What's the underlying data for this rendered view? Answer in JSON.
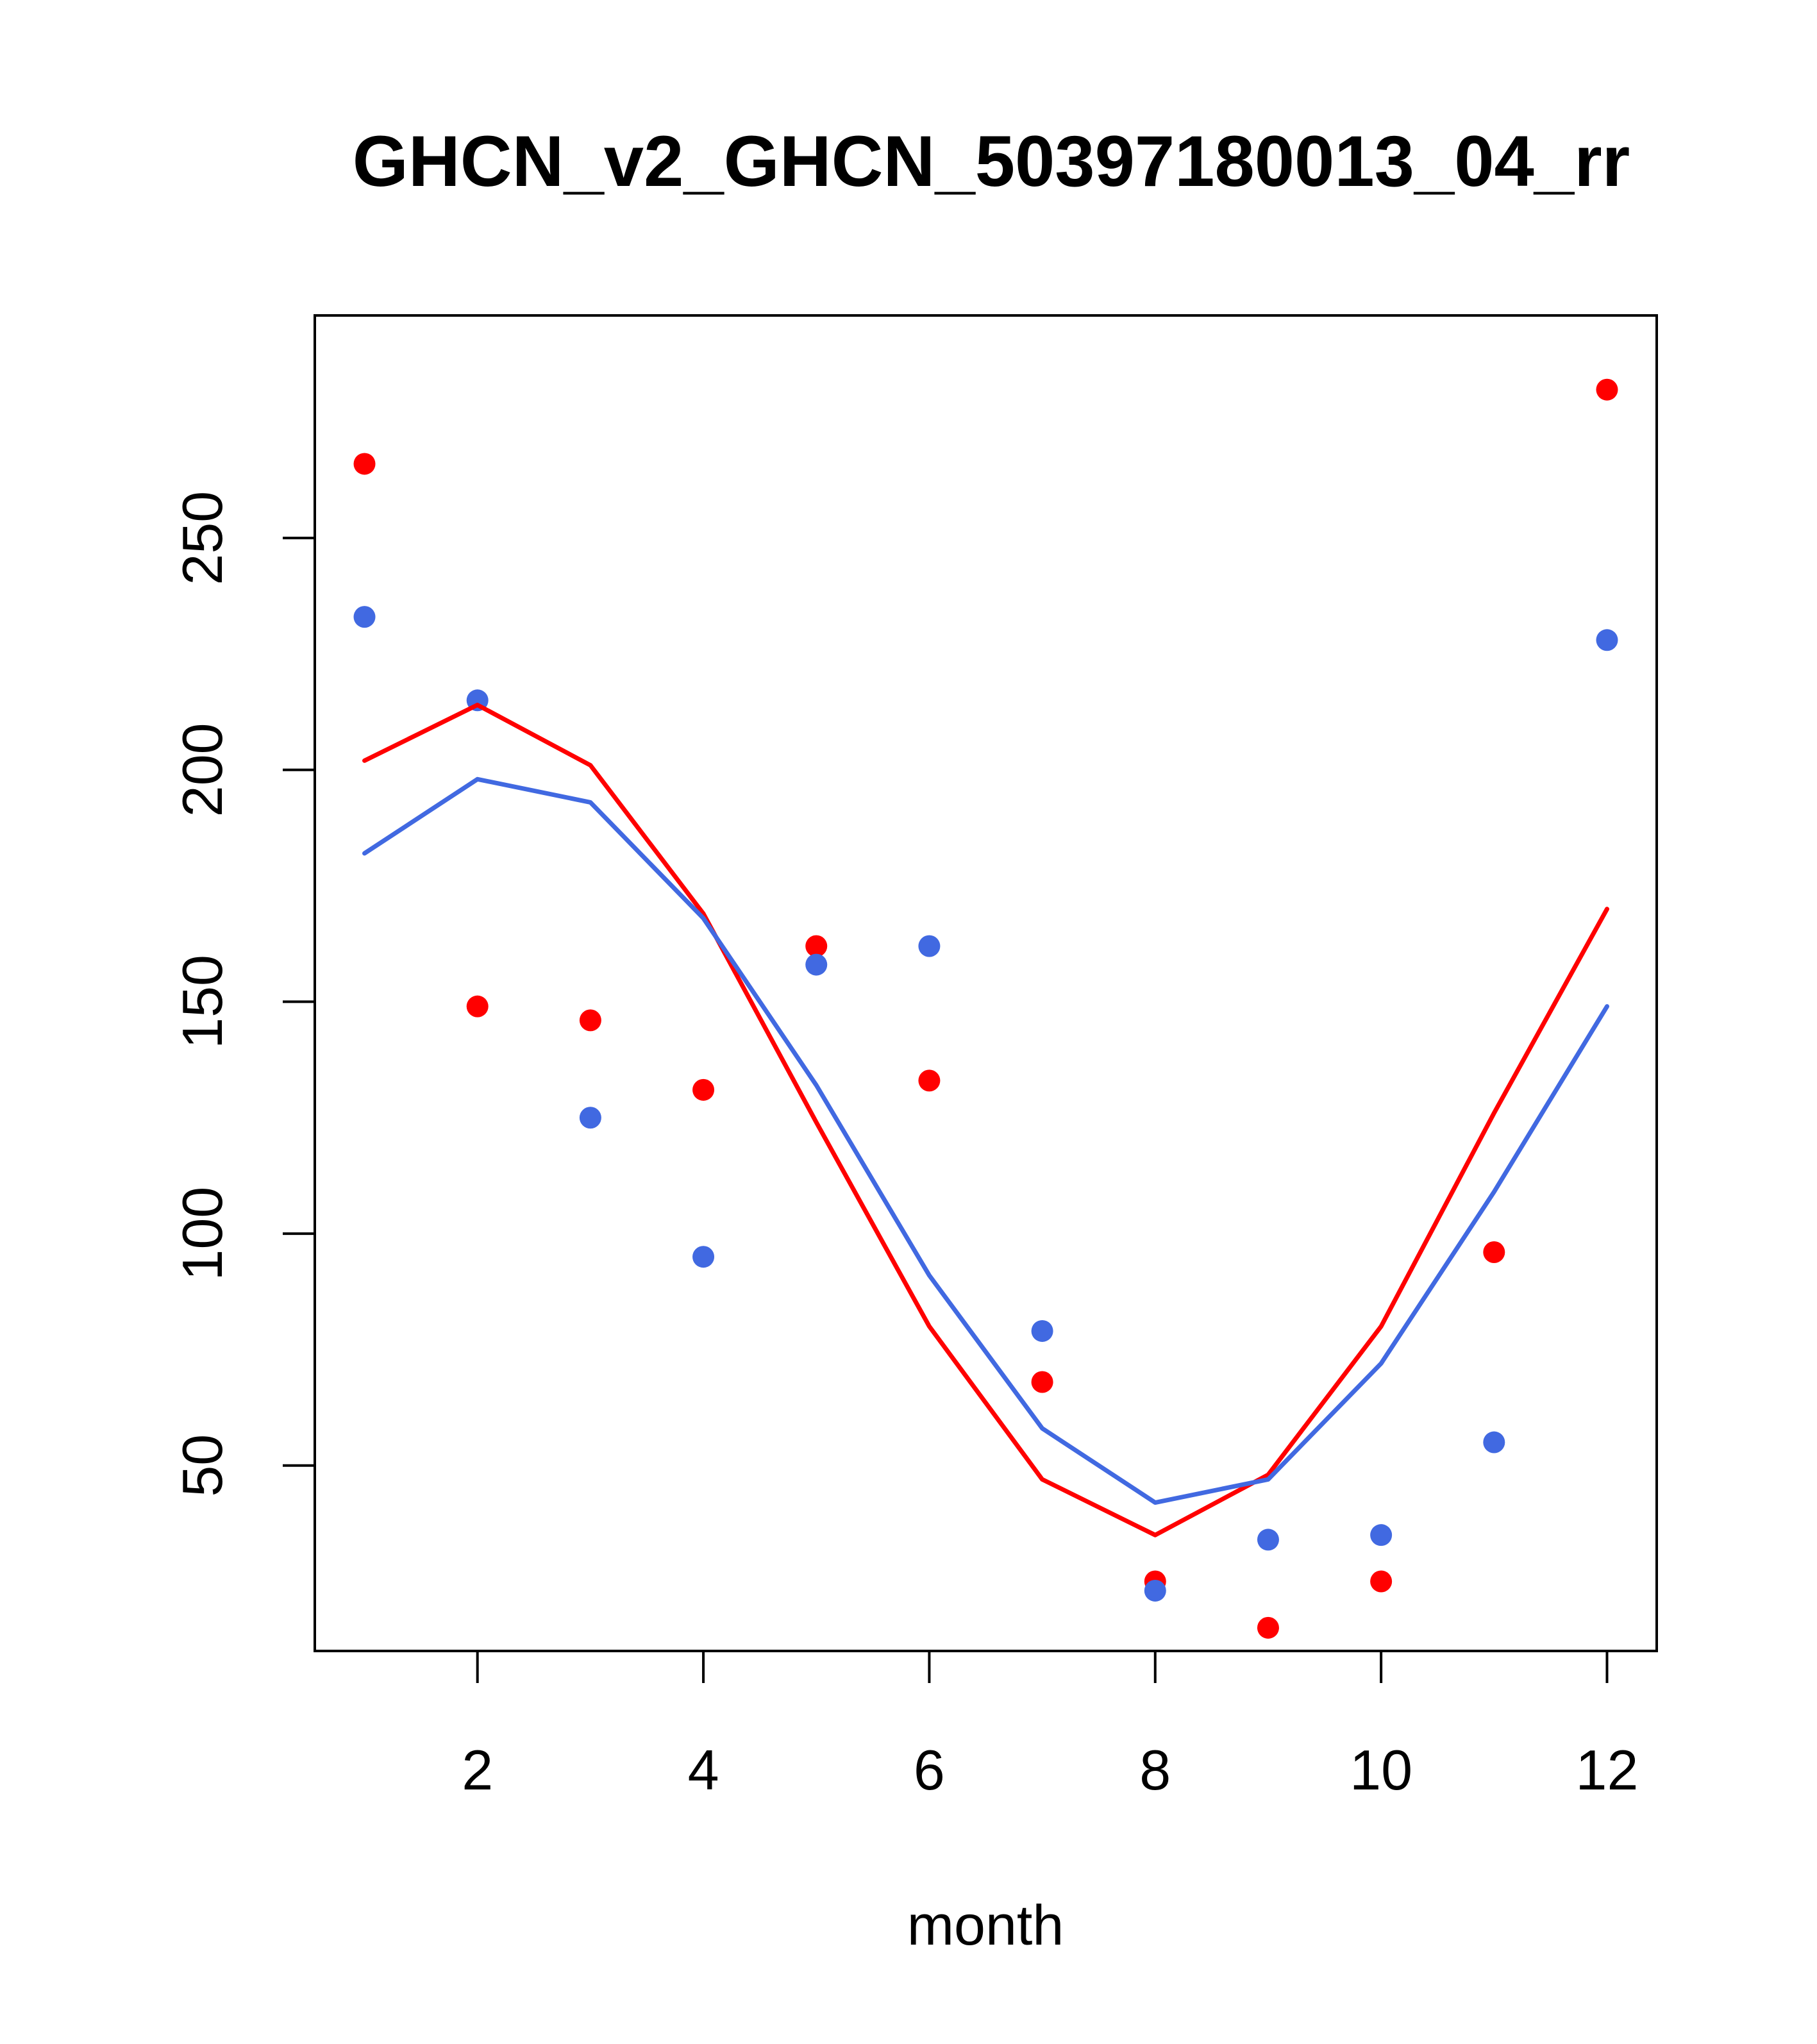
{
  "chart_data": {
    "type": "line",
    "title": "GHCN_v2_GHCN_50397180013_04_rr",
    "xlabel": "month",
    "ylabel": "",
    "xlim": [
      0.56,
      12.44
    ],
    "ylim": [
      10,
      298
    ],
    "x_ticks": [
      2,
      4,
      6,
      8,
      10,
      12
    ],
    "y_ticks": [
      50,
      100,
      150,
      200,
      250
    ],
    "x_tick_labels": [
      "2",
      "4",
      "6",
      "8",
      "10",
      "12"
    ],
    "y_tick_labels": [
      "50",
      "100",
      "150",
      "200",
      "250"
    ],
    "grid": false,
    "x": [
      1,
      2,
      3,
      4,
      5,
      6,
      7,
      8,
      9,
      10,
      11,
      12
    ],
    "series": [
      {
        "kind": "points",
        "color": "#ff0000",
        "values": [
          266,
          149,
          146,
          131,
          162,
          133,
          68,
          25,
          15,
          25,
          96,
          282
        ]
      },
      {
        "kind": "points",
        "color": "#4169e1",
        "values": [
          233,
          215,
          125,
          95,
          158,
          162,
          79,
          23,
          34,
          35,
          55,
          228
        ]
      },
      {
        "kind": "line",
        "color": "#ff0000",
        "values": [
          202,
          214,
          201,
          169,
          124,
          80,
          47,
          35,
          48,
          80,
          126,
          170
        ]
      },
      {
        "kind": "line",
        "color": "#4169e1",
        "values": [
          182,
          198,
          193,
          168,
          132,
          91,
          58,
          42,
          47,
          72,
          109,
          149
        ]
      }
    ]
  }
}
